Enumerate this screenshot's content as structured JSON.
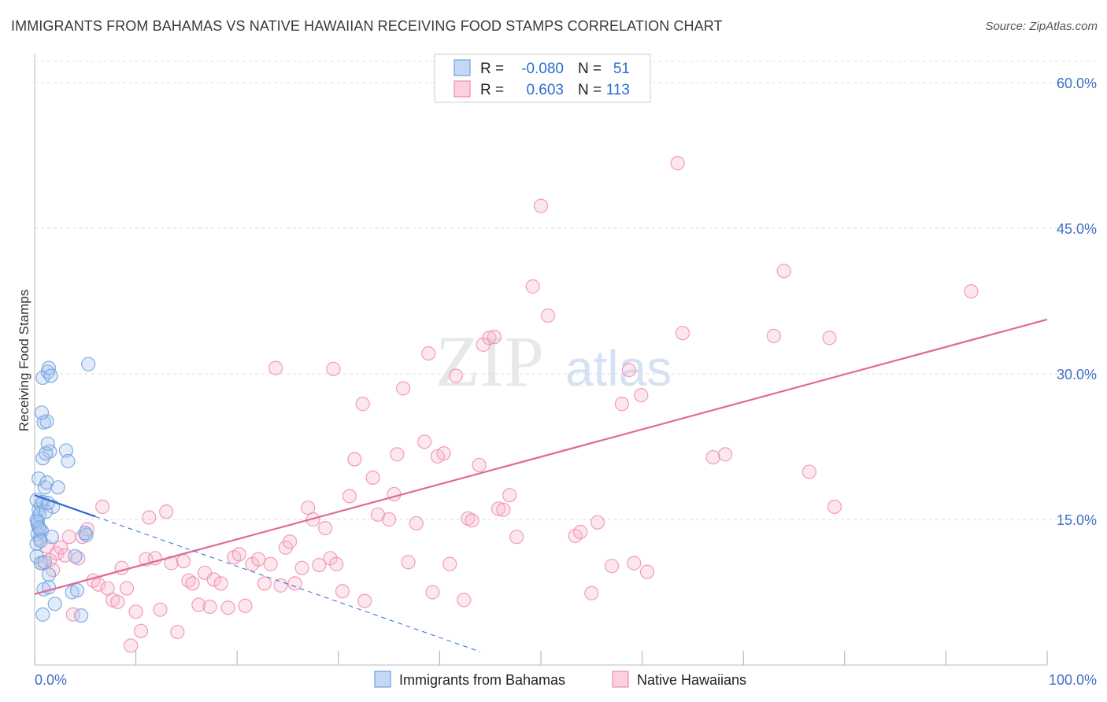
{
  "title": "IMMIGRANTS FROM BAHAMAS VS NATIVE HAWAIIAN RECEIVING FOOD STAMPS CORRELATION CHART",
  "source": "Source: ZipAtlas.com",
  "watermark": {
    "zip": "ZIP",
    "atlas": "atlas"
  },
  "colors": {
    "blue": "#6fa0e0",
    "blue_line": "#2f6bd4",
    "pink": "#f08cb0",
    "pink_line": "#e06a96",
    "grid": "#dddddd",
    "tick_label": "#3f6fc6"
  },
  "chart_data": {
    "type": "scatter",
    "xlabel": "",
    "ylabel": "Receiving Food Stamps",
    "xlim": [
      0,
      100
    ],
    "ylim": [
      0,
      63
    ],
    "x_tick_labels": [
      "0.0%",
      "100.0%"
    ],
    "y_ticks": [
      15,
      30,
      45,
      60
    ],
    "y_tick_labels": [
      "15.0%",
      "30.0%",
      "45.0%",
      "60.0%"
    ],
    "legend": {
      "rows": [
        {
          "r_label": "R =",
          "r_value": "-0.080",
          "n_label": "N =",
          "n_value": "51"
        },
        {
          "r_label": "R =",
          "r_value": "0.603",
          "n_label": "N =",
          "n_value": "113"
        }
      ]
    },
    "series": [
      {
        "name": "Immigrants from Bahamas",
        "color": "blue",
        "trend": {
          "x0": 0,
          "y0": 17.5,
          "x1": 6,
          "y1": 15.3,
          "dash_to_x": 44
        },
        "points": [
          [
            0.2,
            15.0
          ],
          [
            0.3,
            14.5
          ],
          [
            0.4,
            14.2
          ],
          [
            0.3,
            13.5
          ],
          [
            0.5,
            13.0
          ],
          [
            0.2,
            12.5
          ],
          [
            0.4,
            16.0
          ],
          [
            0.6,
            16.5
          ],
          [
            0.5,
            15.5
          ],
          [
            0.3,
            14.8
          ],
          [
            0.7,
            13.8
          ],
          [
            0.8,
            16.8
          ],
          [
            0.2,
            11.2
          ],
          [
            0.6,
            10.5
          ],
          [
            0.4,
            19.2
          ],
          [
            1.0,
            18.3
          ],
          [
            1.2,
            18.8
          ],
          [
            0.8,
            21.3
          ],
          [
            1.5,
            22.0
          ],
          [
            1.1,
            21.8
          ],
          [
            1.3,
            22.8
          ],
          [
            0.9,
            25.0
          ],
          [
            1.2,
            25.1
          ],
          [
            0.7,
            26.0
          ],
          [
            0.8,
            29.6
          ],
          [
            1.3,
            30.2
          ],
          [
            1.4,
            30.6
          ],
          [
            1.6,
            29.8
          ],
          [
            2.3,
            18.3
          ],
          [
            1.8,
            16.3
          ],
          [
            3.1,
            22.1
          ],
          [
            3.3,
            21.0
          ],
          [
            1.1,
            15.8
          ],
          [
            1.4,
            9.3
          ],
          [
            0.9,
            7.8
          ],
          [
            1.4,
            8.0
          ],
          [
            1.7,
            13.2
          ],
          [
            2.0,
            6.3
          ],
          [
            0.8,
            5.2
          ],
          [
            3.7,
            7.5
          ],
          [
            4.2,
            7.7
          ],
          [
            5.1,
            13.4
          ],
          [
            5.0,
            13.6
          ],
          [
            4.0,
            11.2
          ],
          [
            4.6,
            5.1
          ],
          [
            5.3,
            31.0
          ],
          [
            1.3,
            16.7
          ],
          [
            0.5,
            14.0
          ],
          [
            0.6,
            12.8
          ],
          [
            1.0,
            10.6
          ],
          [
            0.2,
            17.0
          ]
        ]
      },
      {
        "name": "Native Hawaiians",
        "color": "pink",
        "trend": {
          "x0": 0,
          "y0": 7.3,
          "x1": 100,
          "y1": 35.6
        },
        "points": [
          [
            0.8,
            10.5
          ],
          [
            1.2,
            12.2
          ],
          [
            1.5,
            10.8
          ],
          [
            1.8,
            9.8
          ],
          [
            2.2,
            11.5
          ],
          [
            2.6,
            12.1
          ],
          [
            3.0,
            11.3
          ],
          [
            3.4,
            13.2
          ],
          [
            3.8,
            5.2
          ],
          [
            4.3,
            11.0
          ],
          [
            4.7,
            13.2
          ],
          [
            5.2,
            14.0
          ],
          [
            5.8,
            8.7
          ],
          [
            6.3,
            8.3
          ],
          [
            6.7,
            16.3
          ],
          [
            7.2,
            7.9
          ],
          [
            7.7,
            6.7
          ],
          [
            8.2,
            6.5
          ],
          [
            8.6,
            10.0
          ],
          [
            9.1,
            7.9
          ],
          [
            9.5,
            2.0
          ],
          [
            10.0,
            5.5
          ],
          [
            10.5,
            3.5
          ],
          [
            11.0,
            10.9
          ],
          [
            11.3,
            15.2
          ],
          [
            11.9,
            11.0
          ],
          [
            12.4,
            5.7
          ],
          [
            13.0,
            15.8
          ],
          [
            13.5,
            10.5
          ],
          [
            14.1,
            3.4
          ],
          [
            14.7,
            10.7
          ],
          [
            15.2,
            8.7
          ],
          [
            15.6,
            8.4
          ],
          [
            16.2,
            6.2
          ],
          [
            16.8,
            9.5
          ],
          [
            17.3,
            6.0
          ],
          [
            17.7,
            8.8
          ],
          [
            18.4,
            8.4
          ],
          [
            19.1,
            5.9
          ],
          [
            19.7,
            11.1
          ],
          [
            20.2,
            11.4
          ],
          [
            20.8,
            6.1
          ],
          [
            21.5,
            10.4
          ],
          [
            22.1,
            10.9
          ],
          [
            22.7,
            8.4
          ],
          [
            23.3,
            10.4
          ],
          [
            23.8,
            30.6
          ],
          [
            24.3,
            8.2
          ],
          [
            24.8,
            12.1
          ],
          [
            25.2,
            12.7
          ],
          [
            25.7,
            8.4
          ],
          [
            26.4,
            10.0
          ],
          [
            27.0,
            16.2
          ],
          [
            27.5,
            15.0
          ],
          [
            28.1,
            10.3
          ],
          [
            28.7,
            14.1
          ],
          [
            29.2,
            11.0
          ],
          [
            29.8,
            10.4
          ],
          [
            29.5,
            30.5
          ],
          [
            30.4,
            7.6
          ],
          [
            31.1,
            17.4
          ],
          [
            31.6,
            21.2
          ],
          [
            32.4,
            26.9
          ],
          [
            32.6,
            6.6
          ],
          [
            33.4,
            19.3
          ],
          [
            33.9,
            15.5
          ],
          [
            35.0,
            15.0
          ],
          [
            35.5,
            17.6
          ],
          [
            35.8,
            21.7
          ],
          [
            36.4,
            28.5
          ],
          [
            36.9,
            10.6
          ],
          [
            37.7,
            14.6
          ],
          [
            38.5,
            23.0
          ],
          [
            38.9,
            32.1
          ],
          [
            39.3,
            7.5
          ],
          [
            39.8,
            21.5
          ],
          [
            40.4,
            21.8
          ],
          [
            41.0,
            10.4
          ],
          [
            41.6,
            29.8
          ],
          [
            42.4,
            6.7
          ],
          [
            42.8,
            15.1
          ],
          [
            43.2,
            14.9
          ],
          [
            43.9,
            20.6
          ],
          [
            44.3,
            33.0
          ],
          [
            44.9,
            33.7
          ],
          [
            45.4,
            33.8
          ],
          [
            45.8,
            16.1
          ],
          [
            46.3,
            16.0
          ],
          [
            46.9,
            17.5
          ],
          [
            47.6,
            13.2
          ],
          [
            50.0,
            47.3
          ],
          [
            49.2,
            39.0
          ],
          [
            50.7,
            36.0
          ],
          [
            53.4,
            13.3
          ],
          [
            53.9,
            13.7
          ],
          [
            55.0,
            7.4
          ],
          [
            55.6,
            14.7
          ],
          [
            57.0,
            10.2
          ],
          [
            58.0,
            26.9
          ],
          [
            58.7,
            30.4
          ],
          [
            59.2,
            10.5
          ],
          [
            60.5,
            9.6
          ],
          [
            59.9,
            27.8
          ],
          [
            63.5,
            51.7
          ],
          [
            64.0,
            34.2
          ],
          [
            67.0,
            21.4
          ],
          [
            68.2,
            21.7
          ],
          [
            73.0,
            33.9
          ],
          [
            74.0,
            40.6
          ],
          [
            76.5,
            19.9
          ],
          [
            78.5,
            33.7
          ],
          [
            79.0,
            16.3
          ],
          [
            92.5,
            38.5
          ]
        ]
      }
    ]
  },
  "bottom_legend": {
    "blue_label": "Immigrants from Bahamas",
    "pink_label": "Native Hawaiians"
  }
}
